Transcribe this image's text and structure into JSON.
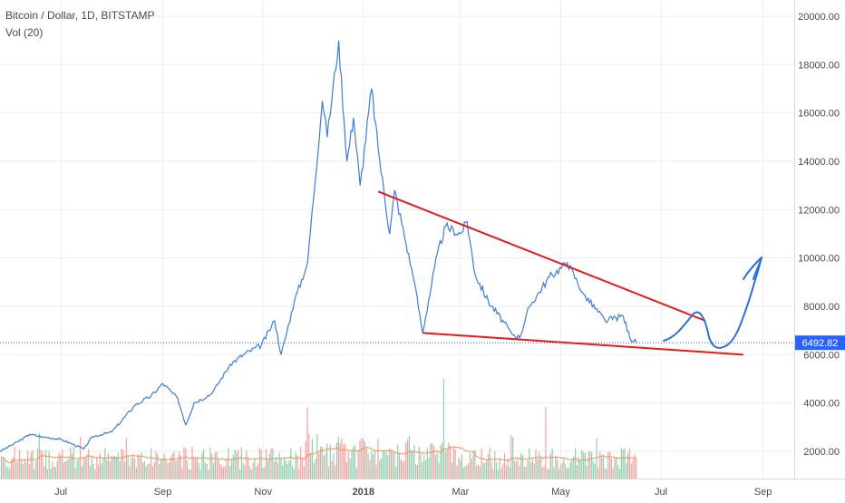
{
  "legend": {
    "title": "Bitcoin / Dollar, 1D, BITSTAMP",
    "indicator": "Vol (20)"
  },
  "colors": {
    "price_line": "#3b7dd8",
    "last_price_line": "#2962ff",
    "last_price_tag": "#2962ff",
    "trendline": "#e8191a",
    "drawing": "#2f6fd8",
    "vol_up": "#8ed1b0",
    "vol_down": "#f4a3a3",
    "vol_ma": "#f0905a",
    "grid": "#eeeeee",
    "axis_text": "#4a4a4a"
  },
  "chart_data": {
    "type": "line",
    "title": "Bitcoin / Dollar, 1D, BITSTAMP",
    "x_tick_labels": [
      "Jul",
      "Sep",
      "Nov",
      "2018",
      "Mar",
      "May",
      "Jul",
      "Sep"
    ],
    "y_tick_labels": [
      "2000.00",
      "4000.00",
      "6000.00",
      "8000.00",
      "10000.00",
      "12000.00",
      "14000.00",
      "16000.00",
      "18000.00",
      "20000.00"
    ],
    "x_range": [
      "2017-05-25",
      "2018-09-20"
    ],
    "y_range": [
      1000,
      20600
    ],
    "grid": true,
    "last_price": {
      "value": 6492.82,
      "label": "6492.82"
    },
    "series": [
      {
        "values_note": "daily close (USD)",
        "x": [
          "2017-05-25",
          "2017-06-05",
          "2017-06-12",
          "2017-06-20",
          "2017-07-01",
          "2017-07-15",
          "2017-07-20",
          "2017-08-01",
          "2017-08-15",
          "2017-08-25",
          "2017-09-01",
          "2017-09-10",
          "2017-09-15",
          "2017-09-20",
          "2017-10-01",
          "2017-10-12",
          "2017-10-20",
          "2017-10-31",
          "2017-11-08",
          "2017-11-12",
          "2017-11-20",
          "2017-11-28",
          "2017-12-07",
          "2017-12-10",
          "2017-12-17",
          "2017-12-22",
          "2017-12-26",
          "2017-12-30",
          "2018-01-06",
          "2018-01-10",
          "2018-01-17",
          "2018-01-20",
          "2018-02-01",
          "2018-02-06",
          "2018-02-15",
          "2018-02-20",
          "2018-03-01",
          "2018-03-05",
          "2018-03-10",
          "2018-03-18",
          "2018-04-01",
          "2018-04-06",
          "2018-04-12",
          "2018-04-24",
          "2018-05-05",
          "2018-05-15",
          "2018-05-28",
          "2018-06-08",
          "2018-06-12",
          "2018-06-16"
        ],
        "values": [
          2000,
          2400,
          2700,
          2600,
          2500,
          2100,
          2600,
          2800,
          3900,
          4300,
          4800,
          4200,
          3100,
          4000,
          4400,
          5600,
          6000,
          6400,
          7400,
          6000,
          8200,
          9800,
          16500,
          15000,
          19000,
          14000,
          15800,
          13000,
          17000,
          14500,
          11000,
          12800,
          9000,
          6900,
          10200,
          11300,
          11000,
          11500,
          9300,
          8200,
          6900,
          6700,
          8000,
          9200,
          9800,
          8500,
          7400,
          7600,
          6700,
          6492.82
        ]
      }
    ],
    "volume": {
      "name": "Vol (20)",
      "ma_period": 20
    },
    "annotations": [
      {
        "type": "trendline",
        "from": {
          "x": "2018-01-10",
          "y": 12750
        },
        "to": {
          "x": "2018-07-28",
          "y": 7400
        }
      },
      {
        "type": "trendline",
        "from": {
          "x": "2018-02-06",
          "y": 6900
        },
        "to": {
          "x": "2018-08-20",
          "y": 6000
        }
      },
      {
        "type": "freehand",
        "description": "projected path"
      }
    ]
  }
}
